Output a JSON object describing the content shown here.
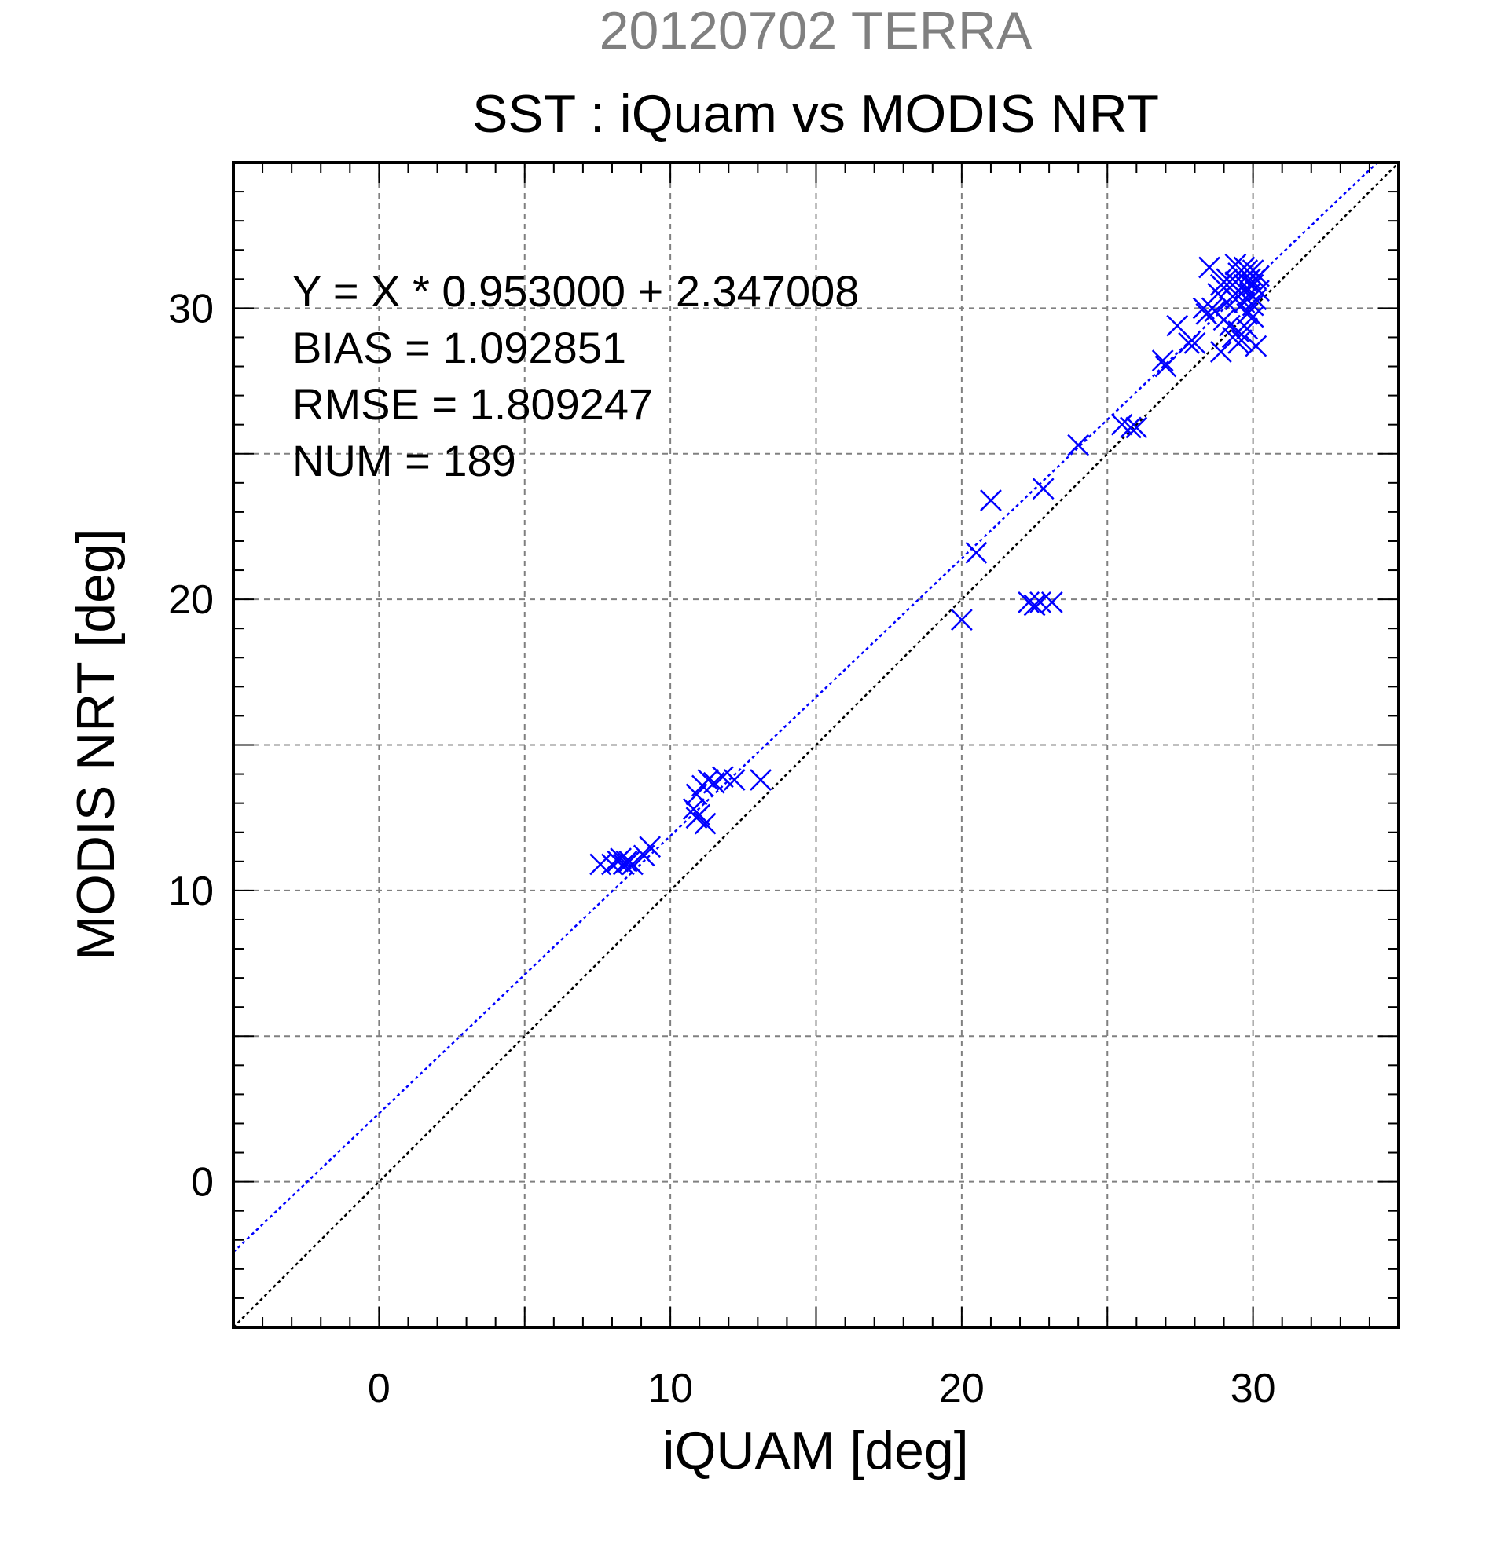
{
  "chart_data": {
    "type": "scatter",
    "title": "20120702 TERRA",
    "subtitle": "SST : iQuam vs MODIS NRT",
    "xlabel": "iQUAM [deg]",
    "ylabel": "MODIS NRT [deg]",
    "xlim": [
      -5,
      35
    ],
    "ylim": [
      -5,
      35
    ],
    "xticks": [
      0,
      10,
      20,
      30
    ],
    "yticks": [
      0,
      10,
      20,
      30
    ],
    "xtick_labels": [
      "0",
      "10",
      "20",
      "30"
    ],
    "ytick_labels": [
      "0",
      "10",
      "20",
      "30"
    ],
    "grid": true,
    "annotations": [
      "Y = X * 0.953000 + 2.347008",
      "BIAS = 1.092851",
      "RMSE = 1.809247",
      "NUM = 189"
    ],
    "regression": {
      "slope": 0.953,
      "intercept": 2.347008
    },
    "colors": {
      "title": "#808080",
      "points": "#0000ff",
      "fit_line": "#0000ff",
      "identity_line": "#000000",
      "grid": "#808080"
    },
    "points": [
      [
        7.6,
        10.9
      ],
      [
        8.0,
        10.9
      ],
      [
        8.2,
        11.0
      ],
      [
        8.3,
        11.1
      ],
      [
        8.4,
        10.9
      ],
      [
        8.5,
        11.0
      ],
      [
        8.6,
        11.0
      ],
      [
        8.7,
        10.9
      ],
      [
        9.1,
        11.2
      ],
      [
        9.3,
        11.5
      ],
      [
        10.8,
        12.8
      ],
      [
        10.9,
        12.5
      ],
      [
        10.9,
        13.3
      ],
      [
        11.0,
        12.6
      ],
      [
        11.1,
        13.6
      ],
      [
        11.2,
        12.3
      ],
      [
        11.3,
        13.8
      ],
      [
        11.5,
        13.7
      ],
      [
        11.8,
        13.9
      ],
      [
        12.2,
        13.8
      ],
      [
        13.1,
        13.8
      ],
      [
        20.0,
        19.3
      ],
      [
        20.5,
        21.6
      ],
      [
        21.0,
        23.4
      ],
      [
        22.3,
        19.9
      ],
      [
        22.5,
        19.8
      ],
      [
        22.7,
        19.9
      ],
      [
        23.1,
        19.9
      ],
      [
        22.8,
        23.8
      ],
      [
        24.0,
        25.3
      ],
      [
        25.5,
        26.0
      ],
      [
        25.8,
        25.9
      ],
      [
        26.0,
        25.9
      ],
      [
        26.9,
        28.2
      ],
      [
        27.0,
        28.0
      ],
      [
        27.4,
        29.4
      ],
      [
        27.8,
        28.8
      ],
      [
        28.0,
        28.8
      ],
      [
        28.3,
        30.0
      ],
      [
        28.4,
        29.8
      ],
      [
        28.5,
        31.4
      ],
      [
        28.6,
        30.0
      ],
      [
        28.7,
        29.9
      ],
      [
        28.8,
        30.5
      ],
      [
        28.9,
        30.8
      ],
      [
        28.9,
        28.5
      ],
      [
        29.0,
        29.6
      ],
      [
        29.1,
        30.2
      ],
      [
        29.1,
        31.0
      ],
      [
        29.2,
        29.4
      ],
      [
        29.3,
        30.4
      ],
      [
        29.3,
        29.0
      ],
      [
        29.4,
        31.5
      ],
      [
        29.4,
        30.9
      ],
      [
        29.5,
        30.6
      ],
      [
        29.5,
        29.2
      ],
      [
        29.5,
        31.2
      ],
      [
        29.6,
        30.7
      ],
      [
        29.6,
        31.1
      ],
      [
        29.7,
        30.8
      ],
      [
        29.7,
        30.2
      ],
      [
        29.7,
        31.4
      ],
      [
        29.8,
        30.9
      ],
      [
        29.8,
        29.8
      ],
      [
        29.8,
        31.3
      ],
      [
        29.9,
        31.0
      ],
      [
        29.9,
        30.5
      ],
      [
        29.9,
        31.2
      ],
      [
        30.0,
        30.8
      ],
      [
        30.0,
        31.3
      ],
      [
        30.0,
        30.1
      ],
      [
        30.1,
        31.0
      ],
      [
        30.1,
        28.7
      ],
      [
        29.6,
        28.9
      ],
      [
        30.0,
        29.7
      ],
      [
        29.5,
        28.8
      ],
      [
        30.2,
        31.1
      ],
      [
        30.2,
        30.6
      ],
      [
        29.4,
        30.3
      ],
      [
        29.2,
        30.7
      ],
      [
        29.8,
        29.3
      ],
      [
        30.1,
        30.3
      ]
    ]
  }
}
